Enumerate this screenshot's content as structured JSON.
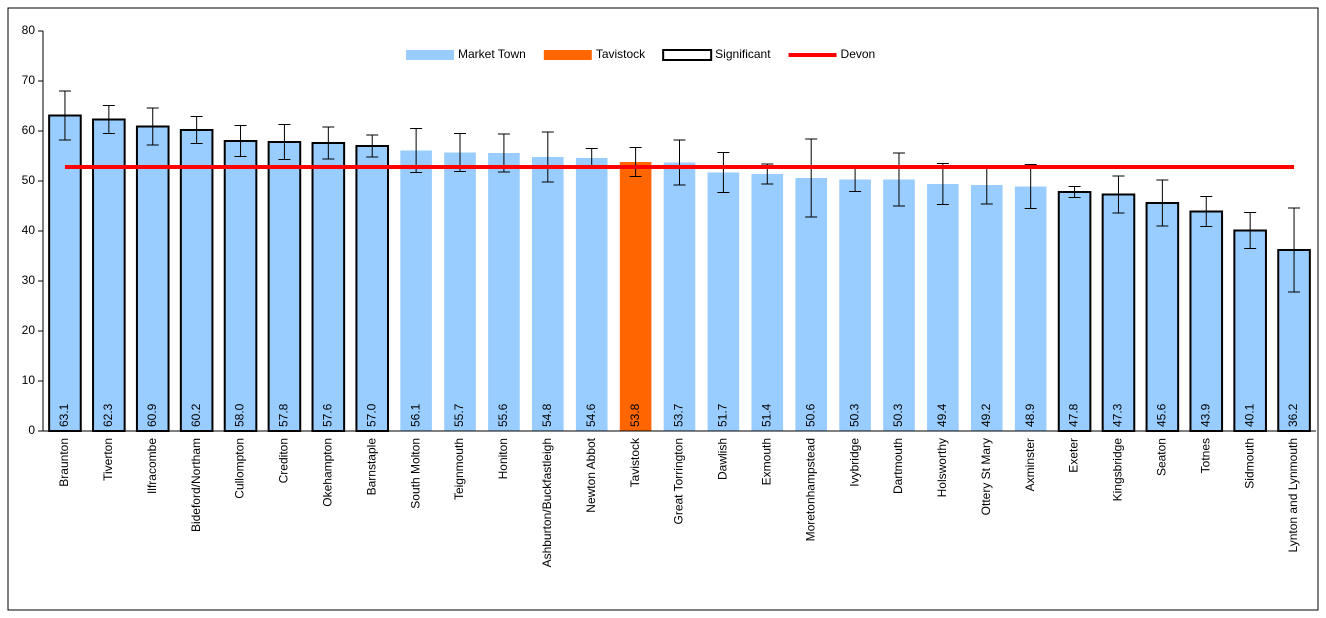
{
  "chart_data": {
    "type": "bar",
    "categories": [
      "Braunton",
      "Tiverton",
      "Ilfracombe",
      "Bideford/Northam",
      "Cullompton",
      "Crediton",
      "Okehampton",
      "Barnstaple",
      "South Molton",
      "Teignmouth",
      "Honiton",
      "Ashburton/Buckfastleigh",
      "Newton Abbot",
      "Tavistock",
      "Great Torrington",
      "Dawlish",
      "Exmouth",
      "Moretonhampstead",
      "Ivybridge",
      "Dartmouth",
      "Holsworthy",
      "Ottery St Mary",
      "Axminster",
      "Exeter",
      "Kingsbridge",
      "Seaton",
      "Totnes",
      "Sidmouth",
      "Lynton and Lynmouth"
    ],
    "values": [
      63.1,
      62.3,
      60.9,
      60.2,
      58.0,
      57.8,
      57.6,
      57.0,
      56.1,
      55.7,
      55.6,
      54.8,
      54.6,
      53.8,
      53.7,
      51.7,
      51.4,
      50.6,
      50.3,
      50.3,
      49.4,
      49.2,
      48.9,
      47.8,
      47.3,
      45.6,
      43.9,
      40.1,
      36.2
    ],
    "value_labels": [
      "63.1",
      "62.3",
      "60.9",
      "60.2",
      "58.0",
      "57.8",
      "57.6",
      "57.0",
      "56.1",
      "55.7",
      "55.6",
      "54.8",
      "54.6",
      "53.8",
      "53.7",
      "51.7",
      "51.4",
      "50.6",
      "50.3",
      "50.3",
      "49.4",
      "49.2",
      "48.9",
      "47.8",
      "47.3",
      "45.6",
      "43.9",
      "40.1",
      "36.2"
    ],
    "errors": [
      4.9,
      2.8,
      3.7,
      2.7,
      3.1,
      3.5,
      3.2,
      2.2,
      4.4,
      3.8,
      3.8,
      5.0,
      1.9,
      2.9,
      4.5,
      4.0,
      2.0,
      7.8,
      2.4,
      5.3,
      4.1,
      3.8,
      4.4,
      1.1,
      3.7,
      4.6,
      3.0,
      3.6,
      8.4
    ],
    "significant": [
      true,
      true,
      true,
      true,
      true,
      true,
      true,
      true,
      false,
      false,
      false,
      false,
      false,
      false,
      false,
      false,
      false,
      false,
      false,
      false,
      false,
      false,
      false,
      true,
      true,
      true,
      true,
      true,
      true
    ],
    "legend": [
      {
        "name": "Market Town",
        "color": "#99ccff"
      },
      {
        "name": "Tavistock",
        "color": "#ff6600"
      },
      {
        "name": "Significant",
        "color": "#000000"
      }
    ],
    "reference_line": {
      "name": "Devon",
      "value": 52.8,
      "color": "#ff0000"
    },
    "ylim": [
      0,
      80
    ],
    "yticks": [
      0,
      10,
      20,
      30,
      40,
      50,
      60,
      70,
      80
    ]
  }
}
